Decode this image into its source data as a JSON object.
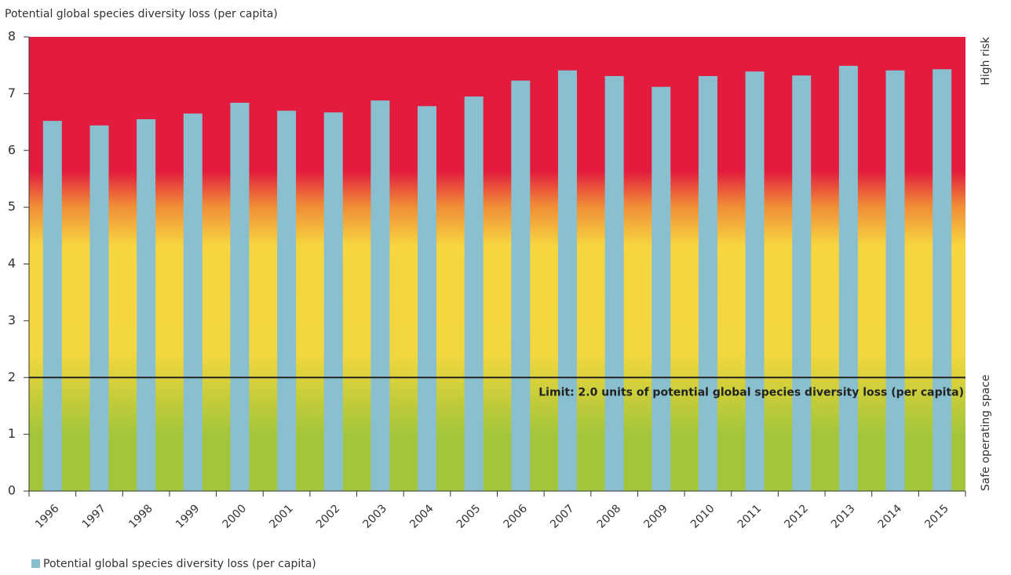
{
  "chart_data": {
    "type": "bar",
    "title": "Potential global species diversity loss (per capita)",
    "categories": [
      "1996",
      "1997",
      "1998",
      "1999",
      "2000",
      "2001",
      "2002",
      "2003",
      "2004",
      "2005",
      "2006",
      "2007",
      "2008",
      "2009",
      "2010",
      "2011",
      "2012",
      "2013",
      "2014",
      "2015"
    ],
    "series": [
      {
        "name": "Potential global species diversity loss (per capita)",
        "color": "#89bfcf",
        "values": [
          6.52,
          6.44,
          6.55,
          6.65,
          6.84,
          6.7,
          6.67,
          6.88,
          6.78,
          6.95,
          7.23,
          7.41,
          7.31,
          7.12,
          7.31,
          7.39,
          7.32,
          7.49,
          7.41,
          7.43
        ]
      }
    ],
    "ylim": [
      0,
      8
    ],
    "yticks": [
      0,
      1,
      2,
      3,
      4,
      5,
      6,
      7,
      8
    ],
    "limit": {
      "value": 2,
      "label": "Limit: 2.0 units of potential global species diversity loss (per capita)"
    },
    "zones": {
      "top": "High risk",
      "bottom": "Safe operating space"
    }
  }
}
